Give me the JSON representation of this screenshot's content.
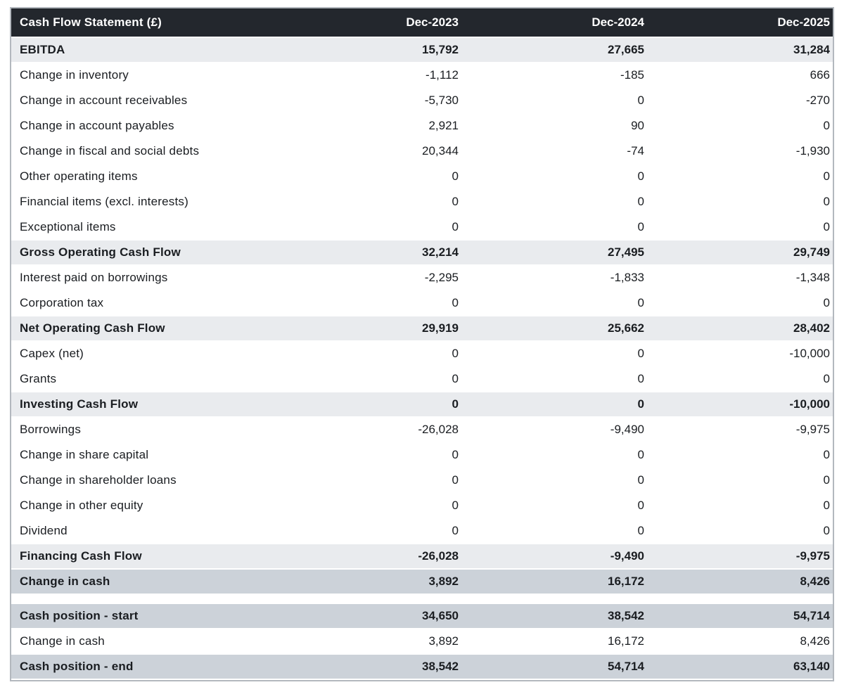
{
  "title": "Cash Flow Statement (£)",
  "colors": {
    "header_bg": "#23272d",
    "header_text": "#ffffff",
    "subtotal_band": "#e9ebee",
    "total_band": "#ccd2d9",
    "body_text": "#1a1d21",
    "table_border": "#b3b8be"
  },
  "table": {
    "header": {
      "label": "Cash Flow Statement (£)",
      "columns": [
        "Dec-2023",
        "Dec-2024",
        "Dec-2025"
      ]
    },
    "rows": [
      {
        "label": "EBITDA",
        "values": [
          "15,792",
          "27,665",
          "31,284"
        ],
        "style": "subtotal"
      },
      {
        "label": "Change in inventory",
        "values": [
          "-1,112",
          "-185",
          "666"
        ],
        "style": "normal"
      },
      {
        "label": "Change in account receivables",
        "values": [
          "-5,730",
          "0",
          "-270"
        ],
        "style": "normal"
      },
      {
        "label": "Change in account payables",
        "values": [
          "2,921",
          "90",
          "0"
        ],
        "style": "normal"
      },
      {
        "label": "Change in fiscal and social debts",
        "values": [
          "20,344",
          "-74",
          "-1,930"
        ],
        "style": "normal"
      },
      {
        "label": "Other operating items",
        "values": [
          "0",
          "0",
          "0"
        ],
        "style": "normal"
      },
      {
        "label": "Financial items (excl. interests)",
        "values": [
          "0",
          "0",
          "0"
        ],
        "style": "normal"
      },
      {
        "label": "Exceptional items",
        "values": [
          "0",
          "0",
          "0"
        ],
        "style": "normal"
      },
      {
        "label": "Gross Operating Cash Flow",
        "values": [
          "32,214",
          "27,495",
          "29,749"
        ],
        "style": "subtotal"
      },
      {
        "label": "Interest paid on borrowings",
        "values": [
          "-2,295",
          "-1,833",
          "-1,348"
        ],
        "style": "normal"
      },
      {
        "label": "Corporation tax",
        "values": [
          "0",
          "0",
          "0"
        ],
        "style": "normal"
      },
      {
        "label": "Net Operating Cash Flow",
        "values": [
          "29,919",
          "25,662",
          "28,402"
        ],
        "style": "subtotal"
      },
      {
        "label": "Capex (net)",
        "values": [
          "0",
          "0",
          "-10,000"
        ],
        "style": "normal"
      },
      {
        "label": "Grants",
        "values": [
          "0",
          "0",
          "0"
        ],
        "style": "normal"
      },
      {
        "label": "Investing Cash Flow",
        "values": [
          "0",
          "0",
          "-10,000"
        ],
        "style": "subtotal"
      },
      {
        "label": "Borrowings",
        "values": [
          "-26,028",
          "-9,490",
          "-9,975"
        ],
        "style": "normal"
      },
      {
        "label": "Change in share capital",
        "values": [
          "0",
          "0",
          "0"
        ],
        "style": "normal"
      },
      {
        "label": "Change in shareholder loans",
        "values": [
          "0",
          "0",
          "0"
        ],
        "style": "normal"
      },
      {
        "label": "Change in other equity",
        "values": [
          "0",
          "0",
          "0"
        ],
        "style": "normal"
      },
      {
        "label": "Dividend",
        "values": [
          "0",
          "0",
          "0"
        ],
        "style": "normal"
      },
      {
        "label": "Financing Cash Flow",
        "values": [
          "-26,028",
          "-9,490",
          "-9,975"
        ],
        "style": "subtotal"
      },
      {
        "label": "Change in cash",
        "values": [
          "3,892",
          "16,172",
          "8,426"
        ],
        "style": "total"
      },
      {
        "label": "Cash position - start",
        "values": [
          "34,650",
          "38,542",
          "54,714"
        ],
        "style": "total"
      },
      {
        "label": "Change in cash",
        "values": [
          "3,892",
          "16,172",
          "8,426"
        ],
        "style": "normal"
      },
      {
        "label": "Cash position - end",
        "values": [
          "38,542",
          "54,714",
          "63,140"
        ],
        "style": "total"
      }
    ]
  }
}
